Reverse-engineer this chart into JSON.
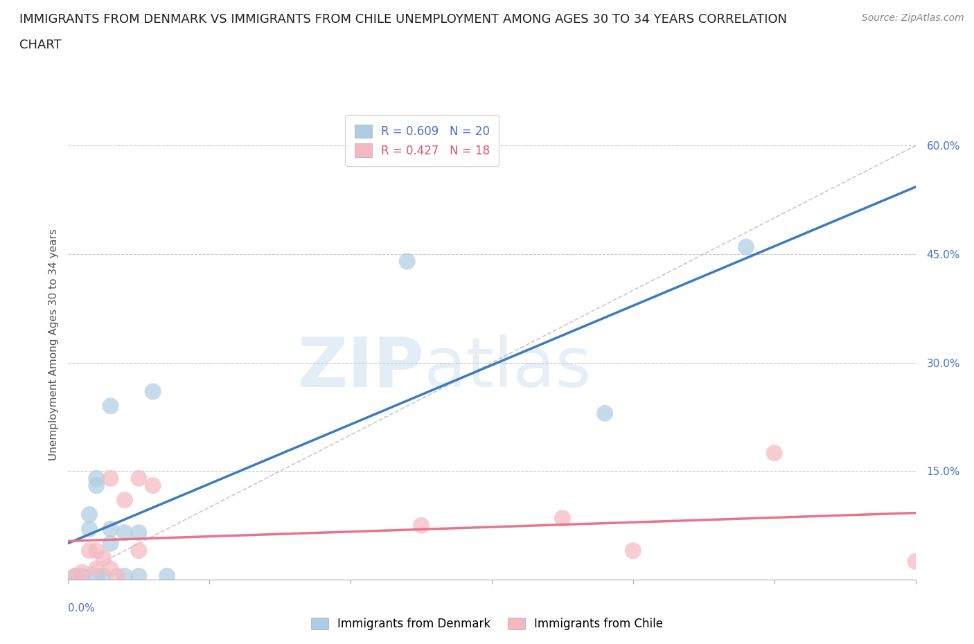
{
  "title_line1": "IMMIGRANTS FROM DENMARK VS IMMIGRANTS FROM CHILE UNEMPLOYMENT AMONG AGES 30 TO 34 YEARS CORRELATION",
  "title_line2": "CHART",
  "source": "Source: ZipAtlas.com",
  "ylabel": "Unemployment Among Ages 30 to 34 years",
  "yticks": [
    0.0,
    0.15,
    0.3,
    0.45,
    0.6
  ],
  "ytick_labels": [
    "",
    "15.0%",
    "30.0%",
    "45.0%",
    "60.0%"
  ],
  "xlim": [
    0.0,
    0.06
  ],
  "ylim": [
    0.0,
    0.65
  ],
  "legend_denmark": "Immigrants from Denmark",
  "legend_chile": "Immigrants from Chile",
  "R_denmark": 0.609,
  "N_denmark": 20,
  "R_chile": 0.427,
  "N_chile": 18,
  "denmark_color": "#aecde1",
  "chile_color": "#f4b8c1",
  "denmark_line_color": "#3a7bbf",
  "chile_line_color": "#e8748a",
  "ref_line_color": "#c8c8c8",
  "watermark_zip": "ZIP",
  "watermark_atlas": "atlas",
  "denmark_x": [
    0.0005,
    0.001,
    0.0015,
    0.0015,
    0.002,
    0.002,
    0.002,
    0.0025,
    0.003,
    0.003,
    0.003,
    0.004,
    0.004,
    0.005,
    0.005,
    0.006,
    0.007,
    0.024,
    0.038,
    0.048
  ],
  "denmark_y": [
    0.005,
    0.005,
    0.07,
    0.09,
    0.005,
    0.13,
    0.14,
    0.005,
    0.05,
    0.07,
    0.24,
    0.005,
    0.065,
    0.005,
    0.065,
    0.26,
    0.005,
    0.44,
    0.23,
    0.46
  ],
  "chile_x": [
    0.0005,
    0.001,
    0.0015,
    0.002,
    0.002,
    0.0025,
    0.003,
    0.003,
    0.0035,
    0.004,
    0.005,
    0.005,
    0.006,
    0.025,
    0.035,
    0.04,
    0.05,
    0.06
  ],
  "chile_y": [
    0.005,
    0.01,
    0.04,
    0.015,
    0.04,
    0.03,
    0.015,
    0.14,
    0.005,
    0.11,
    0.04,
    0.14,
    0.13,
    0.075,
    0.085,
    0.04,
    0.175,
    0.025
  ],
  "background_color": "#ffffff",
  "grid_color": "#c8c8c8",
  "axis_color": "#aaaaaa",
  "title_fontsize": 13,
  "label_fontsize": 11,
  "tick_fontsize": 11,
  "legend_fontsize": 12,
  "source_fontsize": 10,
  "marker_size": 300
}
